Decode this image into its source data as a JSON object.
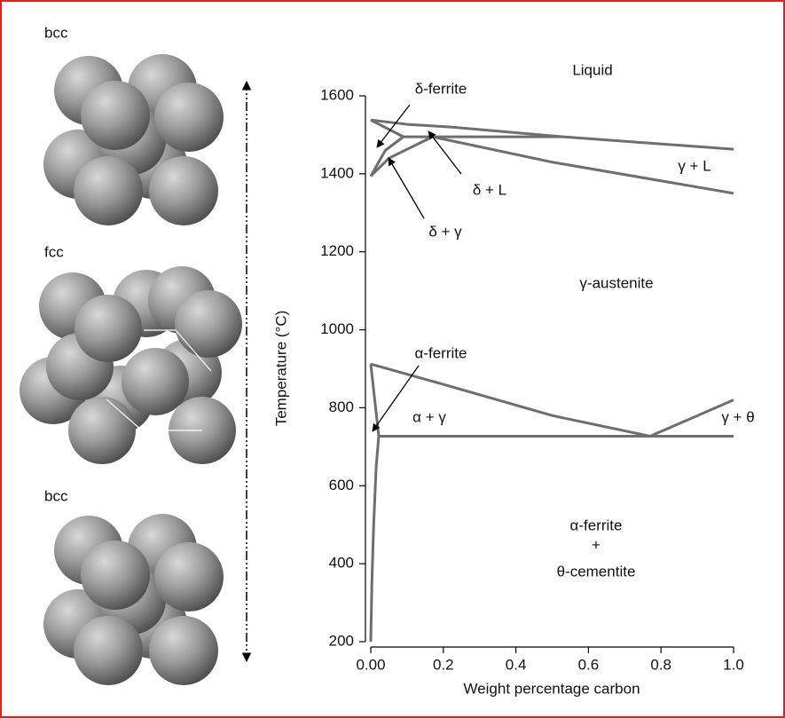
{
  "structures": [
    "bcc",
    "fcc",
    "bcc"
  ],
  "chart_data": {
    "type": "line",
    "x_label": "Weight percentage carbon",
    "y_label": "Temperature (°C)",
    "xlim": [
      0,
      1
    ],
    "ylim": [
      200,
      1600
    ],
    "xticks": [
      {
        "value": 0,
        "label": "0.00"
      },
      0.2,
      0.4,
      0.6,
      0.8,
      {
        "value": 1,
        "label": "1.0"
      }
    ],
    "yticks": [
      200,
      400,
      600,
      800,
      1000,
      1200,
      1400,
      1600
    ],
    "series": [
      {
        "color": "#6e6e6e",
        "x": [
          0,
          0.1,
          0.22,
          0.53,
          1.0
        ],
        "values": [
          1538,
          1527,
          1520,
          1495,
          1463
        ]
      },
      {
        "color": "#6e6e6e",
        "x": [
          0,
          0.09
        ],
        "values": [
          1538,
          1495
        ]
      },
      {
        "color": "#6e6e6e",
        "x": [
          0.09,
          0.53
        ],
        "values": [
          1495,
          1495
        ]
      },
      {
        "color": "#6e6e6e",
        "x": [
          0,
          0.04,
          0.09
        ],
        "values": [
          1394,
          1460,
          1495
        ]
      },
      {
        "color": "#6e6e6e",
        "x": [
          0,
          0.05,
          0.17
        ],
        "values": [
          1394,
          1440,
          1495
        ]
      },
      {
        "color": "#6e6e6e",
        "x": [
          0.17,
          0.5,
          1.0
        ],
        "values": [
          1495,
          1430,
          1350
        ]
      },
      {
        "color": "#6e6e6e",
        "x": [
          0,
          0.2,
          0.5,
          0.77
        ],
        "values": [
          912,
          860,
          780,
          727
        ]
      },
      {
        "color": "#6e6e6e",
        "x": [
          0.77,
          1.0
        ],
        "values": [
          727,
          820
        ]
      },
      {
        "color": "#6e6e6e",
        "x": [
          0.022,
          1.0
        ],
        "values": [
          727,
          727
        ]
      },
      {
        "color": "#6e6e6e",
        "x": [
          0,
          0.022
        ],
        "values": [
          912,
          727
        ]
      },
      {
        "color": "#6e6e6e",
        "x": [
          0.022,
          0.015,
          0.008,
          0.003,
          0
        ],
        "values": [
          727,
          650,
          500,
          350,
          200
        ]
      }
    ],
    "annotations": [
      "Liquid",
      "δ-ferrite",
      "δ + L",
      "δ + γ",
      "γ + L",
      "γ-austenite",
      "α-ferrite",
      "α + γ",
      "γ + θ",
      "α-ferrite",
      "+",
      "θ-cementite"
    ]
  }
}
